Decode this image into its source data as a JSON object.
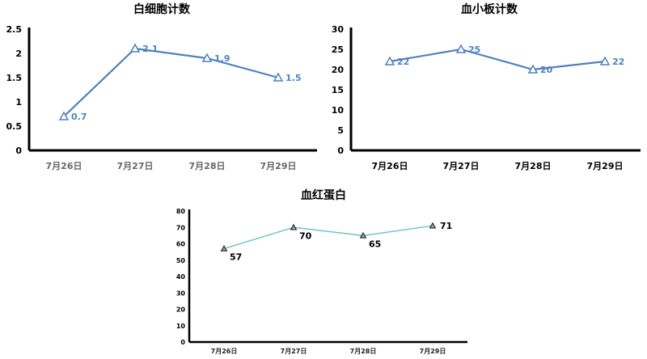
{
  "chart_data": [
    {
      "type": "line",
      "title": "白细胞计数",
      "categories": [
        "7月26日",
        "7月27日",
        "7月28日",
        "7月29日"
      ],
      "values": [
        0.7,
        2.1,
        1.9,
        1.5
      ],
      "ylim": [
        0,
        2.5
      ],
      "yticks": [
        "0",
        "0.5",
        "1",
        "1.5",
        "2",
        "2.5"
      ],
      "xlabel": "",
      "ylabel": "",
      "line_color": "#4f81bd",
      "label_color": "#4f81bd",
      "cat_color": "#666666",
      "marker": "triangle"
    },
    {
      "type": "line",
      "title": "血小板计数",
      "categories": [
        "7月26日",
        "7月27日",
        "7月28日",
        "7月29日"
      ],
      "values": [
        22,
        25,
        20,
        22
      ],
      "ylim": [
        0,
        30
      ],
      "yticks": [
        "0",
        "5",
        "10",
        "15",
        "20",
        "25",
        "30"
      ],
      "xlabel": "",
      "ylabel": "",
      "line_color": "#4f81bd",
      "label_color": "#4f81bd",
      "cat_color": "#000000",
      "marker": "triangle"
    },
    {
      "type": "line",
      "title": "血红蛋白",
      "categories": [
        "7月26日",
        "7月27日",
        "7月28日",
        "7月29日"
      ],
      "values": [
        57,
        70,
        65,
        71
      ],
      "ylim": [
        0,
        80
      ],
      "yticks": [
        "0",
        "10",
        "20",
        "30",
        "40",
        "50",
        "60",
        "70",
        "80"
      ],
      "xlabel": "",
      "ylabel": "",
      "line_color": "#6cc4c6",
      "label_color": "#000000",
      "cat_color": "#222222",
      "marker": "triangle"
    }
  ]
}
